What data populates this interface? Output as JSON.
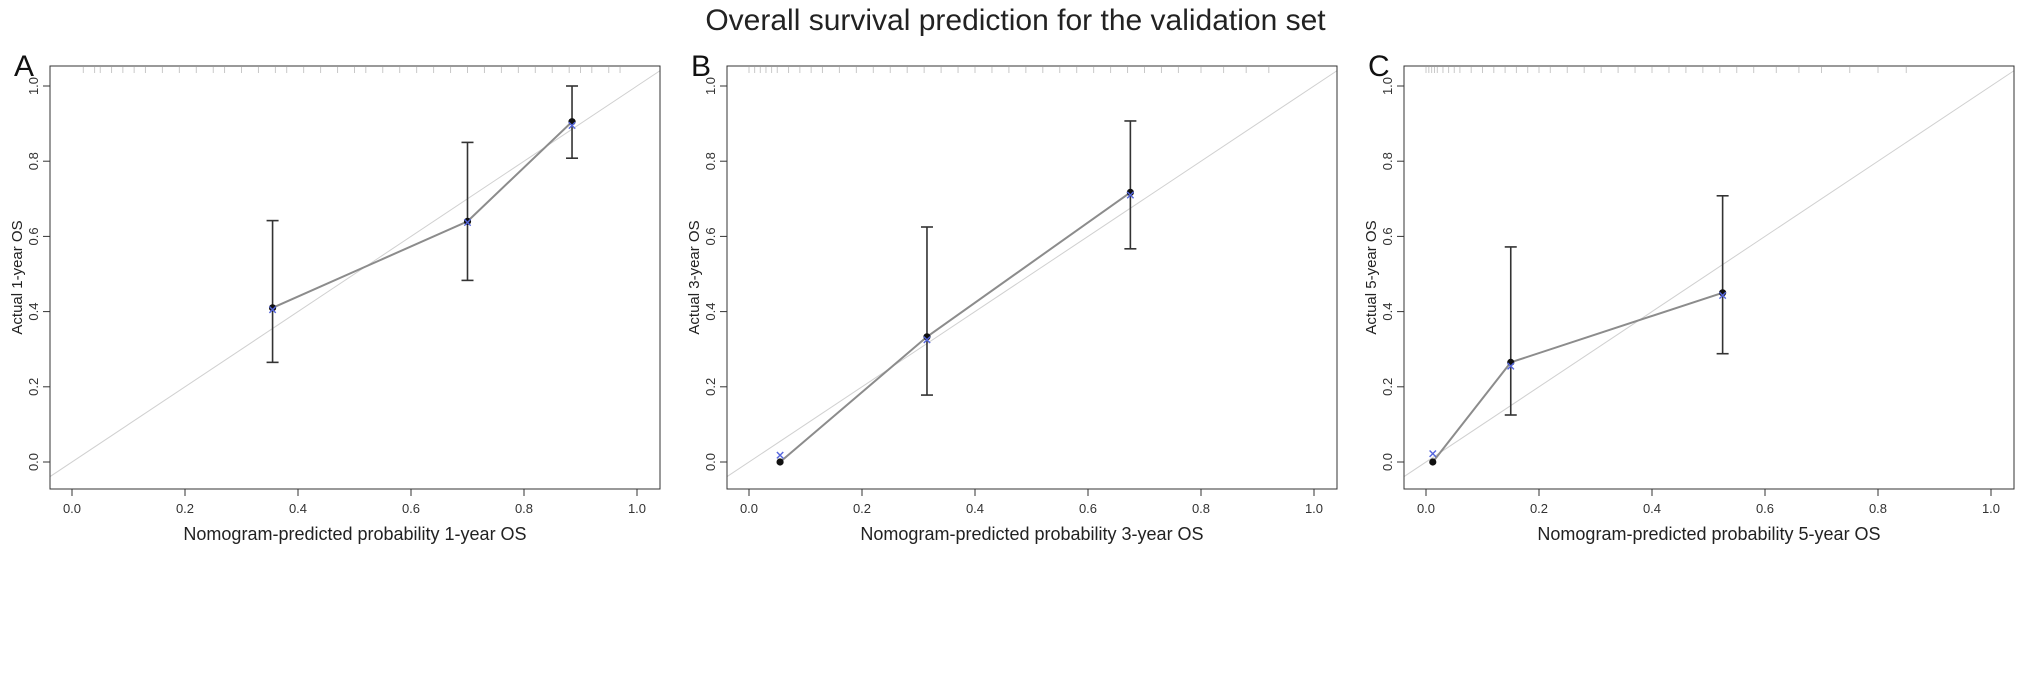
{
  "figure": {
    "title": "Overall survival prediction for the validation set"
  },
  "chart_data": [
    {
      "type": "scatter",
      "panel_label": "A",
      "xlabel": "Nomogram-predicted probability 1-year OS",
      "ylabel": "Actual 1-year OS",
      "xlim": [
        0,
        1
      ],
      "ylim": [
        0,
        1
      ],
      "x_ticks": [
        "0.0",
        "0.2",
        "0.4",
        "0.6",
        "0.8",
        "1.0"
      ],
      "y_ticks": [
        "0.0",
        "0.2",
        "0.4",
        "0.6",
        "0.8",
        "1.0"
      ],
      "reference_line": "diagonal",
      "points": [
        {
          "x": 0.355,
          "y": 0.41,
          "lower": 0.265,
          "upper": 0.642,
          "corrected": 0.405
        },
        {
          "x": 0.7,
          "y": 0.64,
          "lower": 0.483,
          "upper": 0.85,
          "corrected": 0.637
        },
        {
          "x": 0.885,
          "y": 0.905,
          "lower": 0.808,
          "upper": 1.0,
          "corrected": 0.895
        }
      ],
      "rug": [
        0.02,
        0.04,
        0.05,
        0.07,
        0.09,
        0.11,
        0.13,
        0.16,
        0.19,
        0.22,
        0.25,
        0.27,
        0.3,
        0.33,
        0.36,
        0.38,
        0.41,
        0.44,
        0.47,
        0.5,
        0.52,
        0.55,
        0.58,
        0.61,
        0.64,
        0.67,
        0.7,
        0.73,
        0.76,
        0.79,
        0.82,
        0.85,
        0.88,
        0.9,
        0.92,
        0.95,
        0.97
      ]
    },
    {
      "type": "scatter",
      "panel_label": "B",
      "xlabel": "Nomogram-predicted probability 3-year OS",
      "ylabel": "Actual 3-year OS",
      "xlim": [
        0,
        1
      ],
      "ylim": [
        0,
        1
      ],
      "x_ticks": [
        "0.0",
        "0.2",
        "0.4",
        "0.6",
        "0.8",
        "1.0"
      ],
      "y_ticks": [
        "0.0",
        "0.2",
        "0.4",
        "0.6",
        "0.8",
        "1.0"
      ],
      "reference_line": "diagonal",
      "points": [
        {
          "x": 0.055,
          "y": 0.0,
          "lower": null,
          "upper": null,
          "corrected": 0.018
        },
        {
          "x": 0.315,
          "y": 0.333,
          "lower": 0.178,
          "upper": 0.625,
          "corrected": 0.325
        },
        {
          "x": 0.675,
          "y": 0.717,
          "lower": 0.567,
          "upper": 0.907,
          "corrected": 0.71
        }
      ],
      "rug": [
        0.0,
        0.01,
        0.02,
        0.03,
        0.04,
        0.05,
        0.07,
        0.09,
        0.11,
        0.13,
        0.16,
        0.19,
        0.22,
        0.25,
        0.28,
        0.31,
        0.34,
        0.37,
        0.4,
        0.43,
        0.46,
        0.49,
        0.52,
        0.55,
        0.58,
        0.61,
        0.64,
        0.67,
        0.7,
        0.73,
        0.76,
        0.8,
        0.84,
        0.88,
        0.92
      ]
    },
    {
      "type": "scatter",
      "panel_label": "C",
      "xlabel": "Nomogram-predicted probability 5-year OS",
      "ylabel": "Actual 5-year OS",
      "xlim": [
        0,
        1
      ],
      "ylim": [
        0,
        1
      ],
      "x_ticks": [
        "0.0",
        "0.2",
        "0.4",
        "0.6",
        "0.8",
        "1.0"
      ],
      "y_ticks": [
        "0.0",
        "0.2",
        "0.4",
        "0.6",
        "0.8",
        "1.0"
      ],
      "reference_line": "diagonal",
      "points": [
        {
          "x": 0.012,
          "y": 0.0,
          "lower": null,
          "upper": null,
          "corrected": 0.022
        },
        {
          "x": 0.15,
          "y": 0.265,
          "lower": 0.125,
          "upper": 0.572,
          "corrected": 0.255
        },
        {
          "x": 0.525,
          "y": 0.45,
          "lower": 0.288,
          "upper": 0.708,
          "corrected": 0.443
        }
      ],
      "rug": [
        0.0,
        0.005,
        0.01,
        0.015,
        0.02,
        0.03,
        0.04,
        0.05,
        0.06,
        0.08,
        0.1,
        0.12,
        0.14,
        0.16,
        0.18,
        0.2,
        0.22,
        0.25,
        0.28,
        0.31,
        0.34,
        0.37,
        0.4,
        0.43,
        0.46,
        0.49,
        0.52,
        0.55,
        0.58,
        0.62,
        0.66,
        0.7,
        0.75,
        0.8,
        0.85
      ]
    }
  ]
}
